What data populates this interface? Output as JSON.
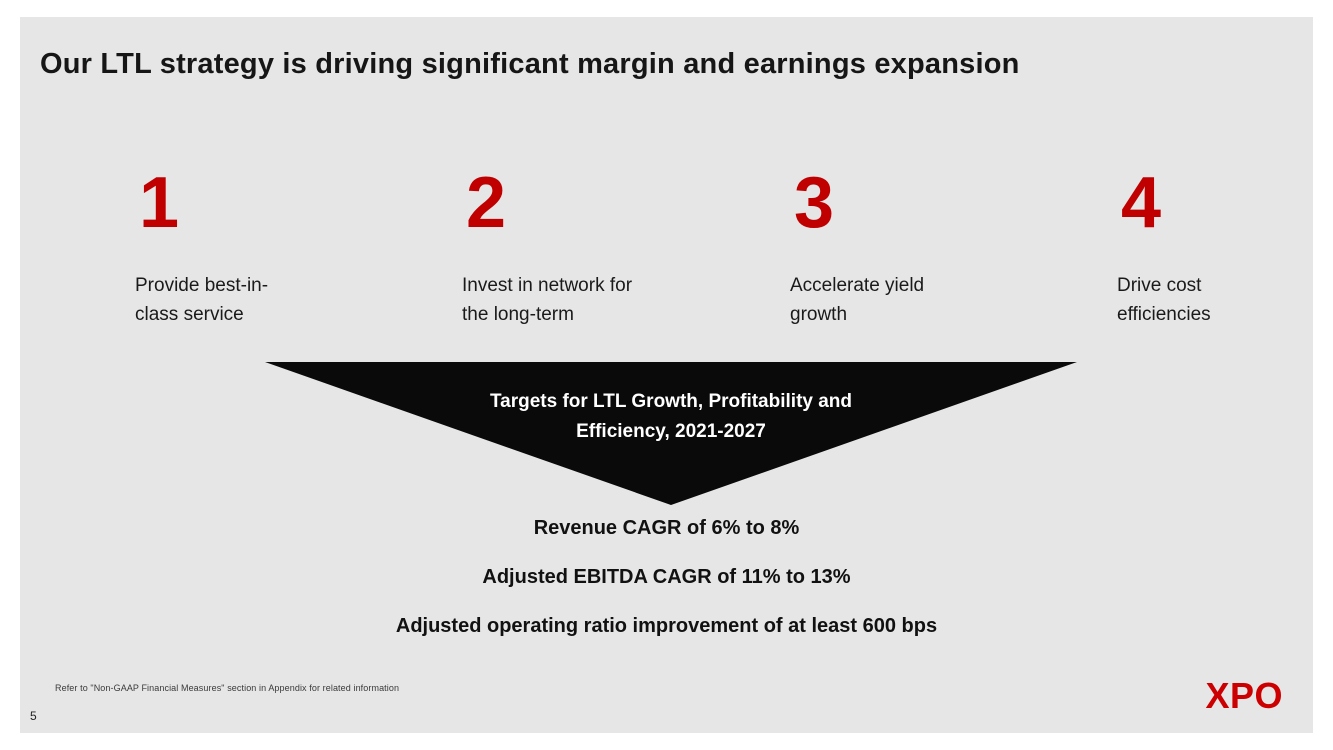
{
  "slide": {
    "title": "Our LTL strategy is driving significant margin and earnings expansion",
    "accent_color": "#C00000",
    "funnel_color": "#0A0A0A",
    "background_color": "#E7E6E6",
    "pillars": [
      {
        "number": "1",
        "label": "Provide best-in-class service"
      },
      {
        "number": "2",
        "label": "Invest in network for the long-term"
      },
      {
        "number": "3",
        "label": "Accelerate yield growth"
      },
      {
        "number": "4",
        "label": "Drive cost efficiencies"
      }
    ],
    "funnel": {
      "line1": "Targets for LTL Growth, Profitability and",
      "line2": "Efficiency, 2021-2027"
    },
    "targets": [
      "Revenue CAGR of 6% to 8%",
      "Adjusted EBITDA CAGR of 11% to 13%",
      "Adjusted operating ratio improvement of at least 600 bps"
    ],
    "footnote": "Refer to \"Non-GAAP Financial Measures\" section in Appendix for related information",
    "page_number": "5",
    "logo": "XPO"
  }
}
